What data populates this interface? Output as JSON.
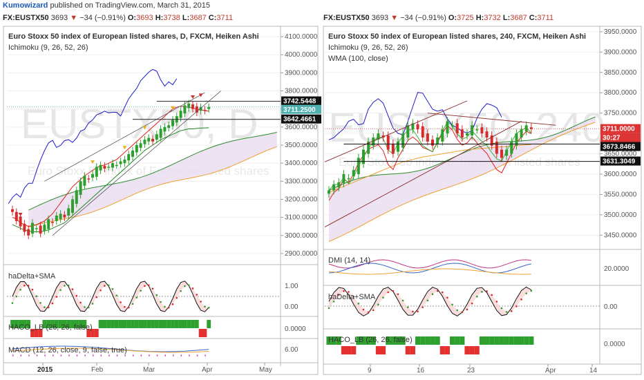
{
  "header": {
    "author": "Kumowizard",
    "published": "published on TradingView.com, March 31, 2015"
  },
  "left": {
    "quote": {
      "symbol": "FX:EUSTX50",
      "price": "3693",
      "change": "−34 (−0.91%)",
      "o_label": "O:",
      "o": "3693",
      "h_label": "H:",
      "h": "3738",
      "l_label": "L:",
      "l": "3687",
      "c_label": "C:",
      "c": "3711"
    },
    "title": "Euro Stoxx 50 index of European listed shares, D, FXCM, Heiken Ashi",
    "study1": "Ichimoku (9, 26, 52, 26)",
    "watermark": "EUSTX50, D",
    "watermark_sub": "Euro Stoxx 50 index of European listed shares",
    "pane2_label": "haDelta+SMA",
    "pane3_label": "HACO_LB (26, 26, false)",
    "pane4_label": "MACD (12, 26, close, 9, false, true)",
    "price_ticks": [
      "4100.0000",
      "4000.0000",
      "3900.0000",
      "3800.0000",
      "3700.0000",
      "3600.0000",
      "3500.0000",
      "3400.0000",
      "3300.0000",
      "3200.0000",
      "3100.0000",
      "3000.0000",
      "2900.0000"
    ],
    "price_labels": [
      "3742.5448",
      "3711.2500",
      "3642.4661"
    ],
    "hadelta_ticks": [
      "1.00",
      "0.00"
    ],
    "haco_ticks": [
      "0.0000"
    ],
    "macd_ticks": [
      "6.00"
    ],
    "x_ticks": [
      "2015",
      "Feb",
      "Mar",
      "Apr",
      "May"
    ]
  },
  "right": {
    "quote": {
      "symbol": "FX:EUSTX50",
      "price": "3693",
      "change": "−34 (−0.91%)",
      "o_label": "O:",
      "o": "3725",
      "h_label": "H:",
      "h": "3732",
      "l_label": "L:",
      "l": "3687",
      "c_label": "C:",
      "c": "3711"
    },
    "title": "Euro Stoxx 50 index of European listed shares, 240, FXCM, Heiken Ashi",
    "study1": "Ichimoku (9, 26, 52, 26)",
    "study2": "WMA (100, close)",
    "watermark": "EUSTX50, 240",
    "watermark_sub": "Euro Stoxx 50 index of European listed shares",
    "pane2_label": "DMI (14, 14)",
    "pane3_label": "haDelta+SMA",
    "pane4_label": "HACO_LB (26, 26, false)",
    "price_ticks": [
      "3950.0000",
      "3900.0000",
      "3850.0000",
      "3800.0000",
      "3750.0000",
      "3700.0000",
      "3650.0000",
      "3600.0000",
      "3550.0000",
      "3500.0000",
      "3450.0000"
    ],
    "price_labels": [
      "3711.0000",
      "30:27",
      "3673.8466",
      "3631.3049"
    ],
    "dmi_ticks": [
      "20.0000"
    ],
    "hadelta_ticks": [
      "0.00"
    ],
    "haco_ticks": [
      "0.0000"
    ],
    "x_ticks": [
      "9",
      "16",
      "23",
      "Apr",
      "14"
    ]
  },
  "colors": {
    "up": "#2e9e2e",
    "down": "#d62b2b",
    "tenkan": "#e02020",
    "kijun": "#1f8a1f",
    "chikou": "#1c1ccc",
    "spanA": "#2e8b2e",
    "spanB": "#f0a030",
    "kumo": "#e8dcef",
    "trend": "#8b2a2a",
    "wma": "#f0a030",
    "haco_up": "#2ea02e",
    "haco_dn": "#e53030"
  },
  "chart_data": [
    {
      "type": "candlestick",
      "title": "Euro Stoxx 50 index of European listed shares, D, FXCM, Heiken Ashi",
      "ylim": [
        2850,
        4150
      ],
      "x_ticks": [
        "2015",
        "Feb",
        "Mar",
        "Apr",
        "May"
      ],
      "ha_close": [
        3130,
        3080,
        3050,
        3020,
        3000,
        3070,
        3040,
        3010,
        3060,
        3090,
        3070,
        3110,
        3120,
        3100,
        3150,
        3200,
        3250,
        3300,
        3330,
        3310,
        3340,
        3380,
        3390,
        3370,
        3380,
        3400,
        3390,
        3410,
        3420,
        3450,
        3470,
        3500,
        3510,
        3530,
        3540,
        3520,
        3560,
        3590,
        3600,
        3610,
        3640,
        3660,
        3690,
        3720,
        3730,
        3700,
        3680,
        3710,
        3690,
        3711
      ],
      "tenkan": [
        3100,
        3090,
        3070,
        3060,
        3050,
        3055,
        3060,
        3070,
        3080,
        3100,
        3120,
        3150,
        3180,
        3210,
        3240,
        3270,
        3290,
        3310,
        3330,
        3345,
        3360,
        3375,
        3385,
        3390,
        3400,
        3410,
        3420,
        3440,
        3460,
        3480,
        3500,
        3520,
        3540,
        3560,
        3580,
        3600,
        3620,
        3640,
        3660,
        3680,
        3700,
        3710,
        3715,
        3712,
        3710,
        3705,
        3700,
        3695,
        3690,
        3688
      ],
      "kijun": [
        3120,
        3110,
        3100,
        3090,
        3085,
        3080,
        3080,
        3080,
        3085,
        3090,
        3100,
        3110,
        3120,
        3130,
        3150,
        3170,
        3190,
        3210,
        3230,
        3250,
        3270,
        3290,
        3310,
        3330,
        3350,
        3370,
        3390,
        3410,
        3430,
        3450,
        3470,
        3490,
        3510,
        3530,
        3545,
        3560,
        3575,
        3590,
        3600,
        3610,
        3620,
        3630,
        3640,
        3645,
        3650,
        3650,
        3652,
        3655,
        3655,
        3656
      ],
      "price_labels": [
        3742.5448,
        3711.25,
        3642.4661
      ]
    },
    {
      "type": "candlestick",
      "title": "Euro Stoxx 50 index of European listed shares, 240, FXCM, Heiken Ashi",
      "ylim": [
        3420,
        3960
      ],
      "x_ticks": [
        "9",
        "16",
        "23",
        "Apr",
        "14"
      ],
      "ha_close": [
        3560,
        3575,
        3580,
        3600,
        3590,
        3610,
        3640,
        3660,
        3680,
        3690,
        3700,
        3690,
        3660,
        3650,
        3680,
        3700,
        3720,
        3725,
        3710,
        3690,
        3680,
        3670,
        3690,
        3710,
        3730,
        3720,
        3700,
        3690,
        3700,
        3720,
        3710,
        3700,
        3690,
        3670,
        3650,
        3640,
        3660,
        3680,
        3700,
        3710,
        3720,
        3711
      ],
      "wma": [
        3575,
        3580,
        3585,
        3590,
        3595,
        3600,
        3605,
        3610,
        3615,
        3620,
        3625,
        3630,
        3635,
        3640,
        3645,
        3650,
        3653,
        3656,
        3659,
        3662,
        3664,
        3666,
        3668,
        3670,
        3672,
        3674,
        3676,
        3678,
        3680,
        3681,
        3682,
        3683,
        3684,
        3685,
        3686,
        3687,
        3688,
        3689,
        3690,
        3691,
        3692,
        3693
      ],
      "price_labels": [
        3711.0,
        3673.8466,
        3631.3049
      ],
      "dmi_ticks": [
        20
      ],
      "hadelta_ticks": [
        0
      ]
    }
  ]
}
